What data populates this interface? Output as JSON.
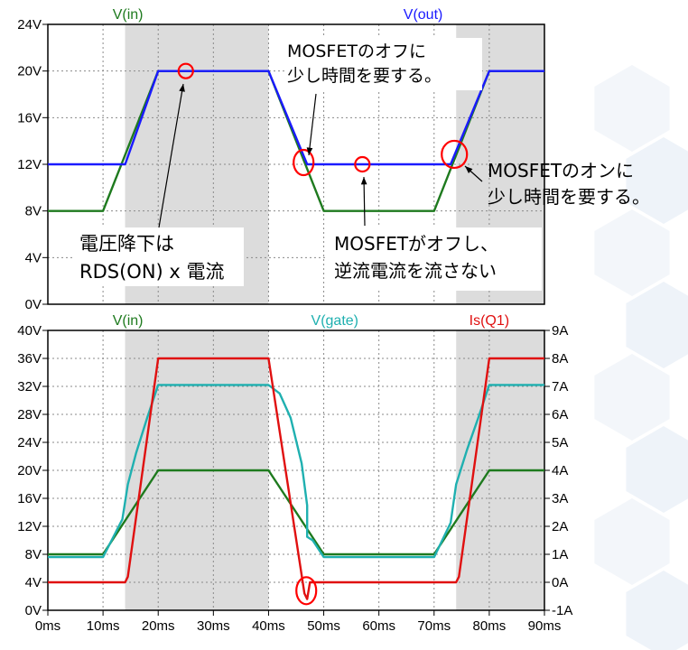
{
  "chart_data": [
    {
      "type": "line",
      "title": "",
      "xlabel": "",
      "ylabel": "",
      "xlim": [
        0,
        90
      ],
      "ylim": [
        0,
        24
      ],
      "x_unit": "ms",
      "y_unit": "V",
      "yticks": [
        "0V",
        "4V",
        "8V",
        "12V",
        "16V",
        "20V",
        "24V"
      ],
      "grid": true,
      "shaded_x_ranges": [
        [
          14,
          40
        ],
        [
          74,
          90
        ]
      ],
      "series": [
        {
          "name": "V(in)",
          "color": "#1e7a1e",
          "x": [
            0,
            10,
            20,
            40,
            50,
            70,
            80,
            90
          ],
          "values": [
            8,
            8,
            20,
            20,
            8,
            8,
            20,
            20
          ]
        },
        {
          "name": "V(out)",
          "color": "#1a1aff",
          "x": [
            0,
            14,
            20,
            40,
            47,
            73,
            80,
            90
          ],
          "values": [
            12,
            12,
            20,
            20,
            12,
            12,
            20,
            20
          ]
        }
      ],
      "annotations": [
        {
          "text": "MOSFETのオフに\n少し時間を要する。",
          "x": 47,
          "y": 12
        },
        {
          "text": "MOSFETのオンに\n少し時間を要する。",
          "x": 74,
          "y": 12.7
        },
        {
          "text": "電圧降下は\nRDS(ON) x 電流",
          "x": 25,
          "y": 20
        },
        {
          "text": "MOSFETがオフし、\n逆流電流を流さない",
          "x": 57,
          "y": 12
        }
      ]
    },
    {
      "type": "line",
      "title": "",
      "xlabel": "",
      "ylabel": "",
      "xlim": [
        0,
        90
      ],
      "ylim": [
        0,
        40
      ],
      "y2lim": [
        -1,
        9
      ],
      "x_unit": "ms",
      "xticks": [
        "0ms",
        "10ms",
        "20ms",
        "30ms",
        "40ms",
        "50ms",
        "60ms",
        "70ms",
        "80ms",
        "90ms"
      ],
      "yticks": [
        "0V",
        "4V",
        "8V",
        "12V",
        "16V",
        "20V",
        "24V",
        "28V",
        "32V",
        "36V",
        "40V"
      ],
      "y2ticks": [
        "-1A",
        "0A",
        "1A",
        "2A",
        "3A",
        "4A",
        "5A",
        "6A",
        "7A",
        "8A",
        "9A"
      ],
      "grid": true,
      "shaded_x_ranges": [
        [
          14,
          40
        ],
        [
          74,
          90
        ]
      ],
      "series": [
        {
          "name": "V(in)",
          "color": "#1e7a1e",
          "axis": "left",
          "x": [
            0,
            10,
            20,
            40,
            50,
            70,
            80,
            90
          ],
          "values": [
            8,
            8,
            20,
            20,
            8,
            8,
            20,
            20
          ]
        },
        {
          "name": "V(gate)",
          "color": "#1fb0b0",
          "axis": "left",
          "x": [
            0,
            10,
            13.5,
            14.5,
            16,
            18,
            20,
            40,
            42,
            44,
            46,
            47,
            47,
            48,
            50,
            70,
            73,
            74,
            76,
            78,
            80,
            90
          ],
          "values": [
            7.6,
            7.6,
            13,
            18,
            22.5,
            27.5,
            32.2,
            32.2,
            31,
            27.5,
            21,
            15,
            10.5,
            10,
            7.6,
            7.6,
            12.5,
            18,
            23,
            27.5,
            32.2,
            32.2
          ]
        },
        {
          "name": "Is(Q1)",
          "color": "#e01010",
          "axis": "right",
          "x": [
            0,
            14,
            14.5,
            20,
            40,
            46.5,
            47,
            47.5,
            48,
            74,
            74.5,
            80,
            90
          ],
          "values": [
            0,
            0,
            0.2,
            8,
            8,
            -0.4,
            -0.6,
            0,
            0,
            0,
            0.2,
            8,
            8
          ]
        }
      ],
      "annotations": [
        {
          "marker": "circle",
          "x": 47,
          "y2": -0.3
        }
      ]
    }
  ]
}
